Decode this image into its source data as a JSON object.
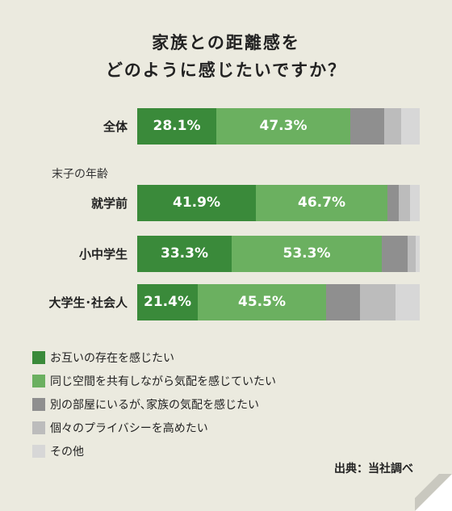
{
  "title_lines": [
    "家族との距離感を",
    "どのように感じたいですか？"
  ],
  "section_label": "末子の年齢",
  "source": "出典：当社調べ",
  "colors": [
    "#3a8a3a",
    "#6bb060",
    "#8f8f8f",
    "#bcbcbc",
    "#d7d7d7"
  ],
  "chart_data": {
    "type": "bar",
    "orientation": "horizontal",
    "stacked": true,
    "title": "家族との距離感を どのように感じたいですか？",
    "categories": [
      "全体",
      "就学前",
      "小中学生",
      "大学生･社会人"
    ],
    "series": [
      {
        "name": "お互いの存在を感じたい",
        "values": [
          28.1,
          41.9,
          33.3,
          21.4
        ],
        "labels": [
          "28.1%",
          "41.9%",
          "33.3%",
          "21.4%"
        ]
      },
      {
        "name": "同じ空間を共有しながら気配を感じていたい",
        "values": [
          47.3,
          46.7,
          53.3,
          45.5
        ],
        "labels": [
          "47.3%",
          "46.7%",
          "53.3%",
          "45.5%"
        ]
      },
      {
        "name": "別の部屋にいるが､家族の気配を感じたい",
        "values": [
          12.0,
          4.0,
          9.0,
          12.0
        ]
      },
      {
        "name": "個々のプライバシーを高めたい",
        "values": [
          6.0,
          4.0,
          3.0,
          12.5
        ]
      },
      {
        "name": "その他",
        "values": [
          6.6,
          3.4,
          1.4,
          8.6
        ]
      }
    ],
    "xlim": [
      0,
      100
    ]
  }
}
